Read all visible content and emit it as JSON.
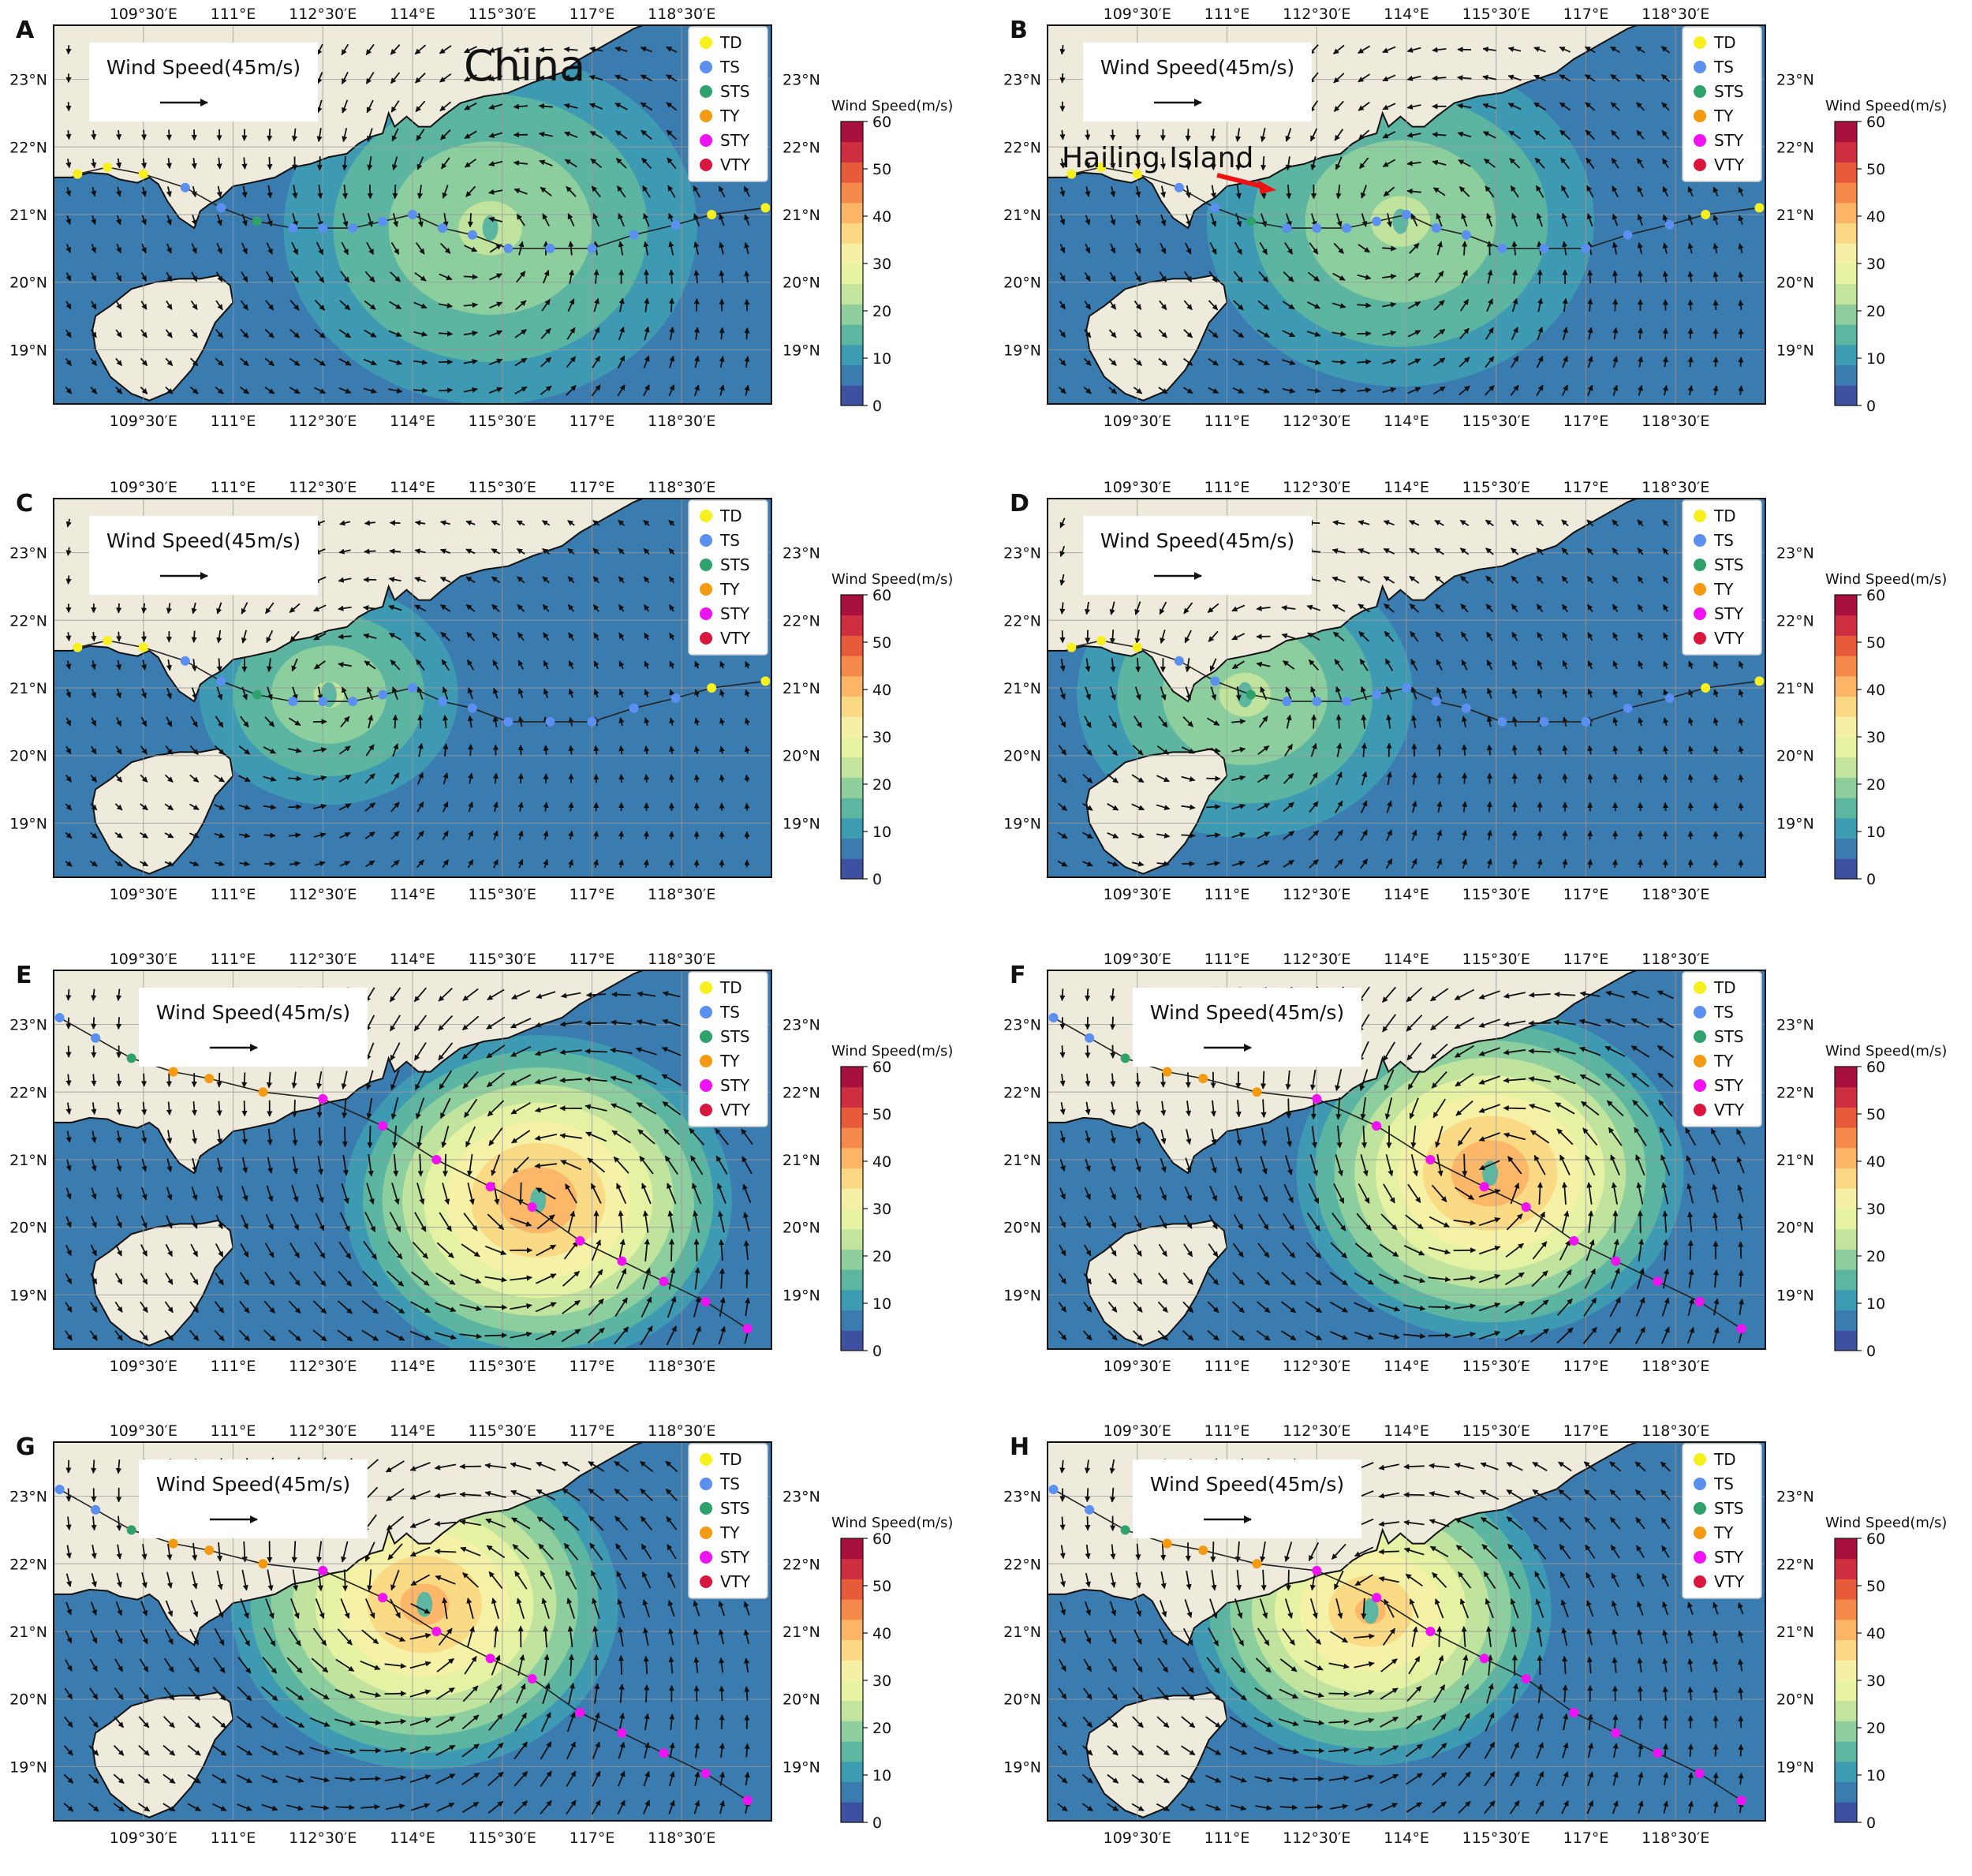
{
  "figure": {
    "panels": [
      {
        "label": "A",
        "annotation": "China",
        "phase": 0,
        "track_set": "early",
        "storm": {
          "lon": 115.3,
          "lat": 20.8,
          "peak": 22,
          "radius": 3.2
        }
      },
      {
        "label": "B",
        "annotation": "Hailing Island",
        "phase": 1,
        "track_set": "early",
        "storm": {
          "lon": 113.9,
          "lat": 20.9,
          "peak": 22,
          "radius": 3.0
        }
      },
      {
        "label": "C",
        "annotation": "",
        "phase": 2,
        "track_set": "early",
        "storm": {
          "lon": 112.6,
          "lat": 20.9,
          "peak": 21,
          "radius": 2.0
        }
      },
      {
        "label": "D",
        "annotation": "",
        "phase": 3,
        "track_set": "early",
        "storm": {
          "lon": 111.3,
          "lat": 20.9,
          "peak": 22,
          "radius": 2.6
        }
      },
      {
        "label": "E",
        "annotation": "",
        "phase": 4,
        "track_set": "late",
        "storm": {
          "lon": 116.1,
          "lat": 20.4,
          "peak": 42,
          "radius": 3.0
        }
      },
      {
        "label": "F",
        "annotation": "",
        "phase": 5,
        "track_set": "late",
        "storm": {
          "lon": 115.4,
          "lat": 20.8,
          "peak": 42,
          "radius": 3.0
        }
      },
      {
        "label": "G",
        "annotation": "",
        "phase": 6,
        "track_set": "late",
        "storm": {
          "lon": 114.2,
          "lat": 21.4,
          "peak": 40,
          "radius": 3.0
        }
      },
      {
        "label": "H",
        "annotation": "",
        "phase": 7,
        "track_set": "late",
        "storm": {
          "lon": 113.4,
          "lat": 21.3,
          "peak": 38,
          "radius": 2.8
        }
      }
    ],
    "map_extent": {
      "lon_min": 108.0,
      "lon_max": 120.0,
      "lat_min": 18.2,
      "lat_max": 23.8
    },
    "lon_ticks": [
      {
        "value": 109.5,
        "label": "109°30′E"
      },
      {
        "value": 111.0,
        "label": "111°E"
      },
      {
        "value": 112.5,
        "label": "112°30′E"
      },
      {
        "value": 114.0,
        "label": "114°E"
      },
      {
        "value": 115.5,
        "label": "115°30′E"
      },
      {
        "value": 117.0,
        "label": "117°E"
      },
      {
        "value": 118.5,
        "label": "118°30′E"
      }
    ],
    "lat_ticks": [
      {
        "value": 19,
        "label": "19°N"
      },
      {
        "value": 20,
        "label": "20°N"
      },
      {
        "value": 21,
        "label": "21°N"
      },
      {
        "value": 22,
        "label": "22°N"
      },
      {
        "value": 23,
        "label": "23°N"
      }
    ],
    "reference_box": {
      "text": "Wind Speed(45m/s)"
    },
    "legend": [
      {
        "name": "TD",
        "color": "#f7f01e"
      },
      {
        "name": "TS",
        "color": "#5b8ff0"
      },
      {
        "name": "STS",
        "color": "#2ea26a"
      },
      {
        "name": "TY",
        "color": "#f39a12"
      },
      {
        "name": "STY",
        "color": "#ef12f2"
      },
      {
        "name": "VTY",
        "color": "#d9163e"
      }
    ],
    "colorbar": {
      "title": "Wind Speed(m/s)",
      "ticks": [
        "0",
        "10",
        "20",
        "30",
        "40",
        "50",
        "60"
      ],
      "bins": [
        "#3e51a1",
        "#3a7bb0",
        "#3d9bb2",
        "#5db6a0",
        "#8fcf9e",
        "#c2e49d",
        "#e7f3a3",
        "#f6f0a6",
        "#fbd883",
        "#fcb567",
        "#f68a4b",
        "#e75a3a",
        "#cf2f40",
        "#a8103d"
      ]
    },
    "tracks": {
      "early": [
        {
          "lon": 119.9,
          "lat": 21.1,
          "cat": "TD"
        },
        {
          "lon": 119.0,
          "lat": 21.0,
          "cat": "TD"
        },
        {
          "lon": 118.4,
          "lat": 20.85,
          "cat": "TS"
        },
        {
          "lon": 117.7,
          "lat": 20.7,
          "cat": "TS"
        },
        {
          "lon": 117.0,
          "lat": 20.5,
          "cat": "TS"
        },
        {
          "lon": 116.3,
          "lat": 20.5,
          "cat": "TS"
        },
        {
          "lon": 115.6,
          "lat": 20.5,
          "cat": "TS"
        },
        {
          "lon": 115.0,
          "lat": 20.7,
          "cat": "TS"
        },
        {
          "lon": 114.5,
          "lat": 20.8,
          "cat": "TS"
        },
        {
          "lon": 114.0,
          "lat": 21.0,
          "cat": "TS"
        },
        {
          "lon": 113.5,
          "lat": 20.9,
          "cat": "TS"
        },
        {
          "lon": 113.0,
          "lat": 20.8,
          "cat": "TS"
        },
        {
          "lon": 112.5,
          "lat": 20.8,
          "cat": "TS"
        },
        {
          "lon": 112.0,
          "lat": 20.8,
          "cat": "TS"
        },
        {
          "lon": 111.4,
          "lat": 20.9,
          "cat": "STS"
        },
        {
          "lon": 110.8,
          "lat": 21.1,
          "cat": "TS"
        },
        {
          "lon": 110.2,
          "lat": 21.4,
          "cat": "TS"
        },
        {
          "lon": 109.5,
          "lat": 21.6,
          "cat": "TD"
        },
        {
          "lon": 108.9,
          "lat": 21.7,
          "cat": "TD"
        },
        {
          "lon": 108.4,
          "lat": 21.6,
          "cat": "TD"
        }
      ],
      "late": [
        {
          "lon": 108.1,
          "lat": 23.1,
          "cat": "TS"
        },
        {
          "lon": 108.7,
          "lat": 22.8,
          "cat": "TS"
        },
        {
          "lon": 109.3,
          "lat": 22.5,
          "cat": "STS"
        },
        {
          "lon": 110.0,
          "lat": 22.3,
          "cat": "TY"
        },
        {
          "lon": 110.6,
          "lat": 22.2,
          "cat": "TY"
        },
        {
          "lon": 111.5,
          "lat": 22.0,
          "cat": "TY"
        },
        {
          "lon": 112.5,
          "lat": 21.9,
          "cat": "STY"
        },
        {
          "lon": 113.5,
          "lat": 21.5,
          "cat": "STY"
        },
        {
          "lon": 114.4,
          "lat": 21.0,
          "cat": "STY"
        },
        {
          "lon": 115.3,
          "lat": 20.6,
          "cat": "STY"
        },
        {
          "lon": 116.0,
          "lat": 20.3,
          "cat": "STY"
        },
        {
          "lon": 116.8,
          "lat": 19.8,
          "cat": "STY"
        },
        {
          "lon": 117.5,
          "lat": 19.5,
          "cat": "STY"
        },
        {
          "lon": 118.2,
          "lat": 19.2,
          "cat": "STY"
        },
        {
          "lon": 118.9,
          "lat": 18.9,
          "cat": "STY"
        },
        {
          "lon": 119.6,
          "lat": 18.5,
          "cat": "STY"
        }
      ]
    },
    "colors": {
      "land": "#efebdc",
      "coast": "#111111",
      "grid": "#9a9a9a",
      "arrow": "#111111",
      "track_line": "#222222",
      "pointer_arrow": "#ee1111"
    }
  }
}
